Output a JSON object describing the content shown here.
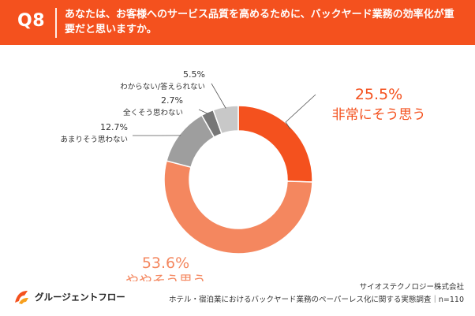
{
  "header": {
    "question_number": "Q8",
    "question_text": "あなたは、お客様へのサービス品質を高めるために、バックヤード業務の効率化が重要だと思いますか。"
  },
  "chart_data": {
    "type": "pie",
    "title": "",
    "slices": [
      {
        "label": "非常にそう思う",
        "value": 25.5,
        "value_label": "25.5%",
        "color": "#F4511E"
      },
      {
        "label": "ややそう思う",
        "value": 53.6,
        "value_label": "53.6%",
        "color": "#F4875F"
      },
      {
        "label": "あまりそう思わない",
        "value": 12.7,
        "value_label": "12.7%",
        "color": "#9E9E9E"
      },
      {
        "label": "全くそう思わない",
        "value": 2.7,
        "value_label": "2.7%",
        "color": "#777777"
      },
      {
        "label": "わからない/答えられない",
        "value": 5.5,
        "value_label": "5.5%",
        "color": "#C8C8C8"
      }
    ]
  },
  "footer": {
    "company": "サイオステクノロジー株式会社",
    "note": "ホテル・宿泊業におけるバックヤード業務のペーパーレス化に関する実態調査｜n=110",
    "logo_text": "グルージェントフロー"
  },
  "colors": {
    "accent": "#F4511E",
    "accent_light": "#F4875F",
    "gray": "#9E9E9E"
  }
}
